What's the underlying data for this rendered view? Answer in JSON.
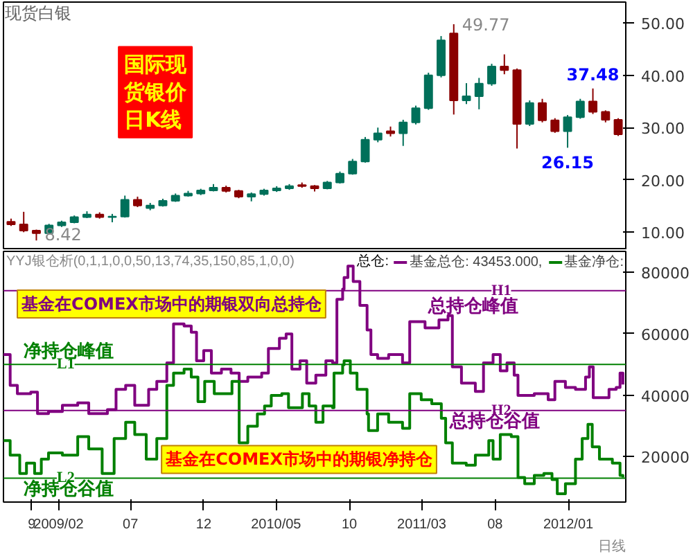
{
  "chart_data": [
    {
      "type": "candlestick",
      "title": "现货白银",
      "ylim": [
        6.6,
        54
      ],
      "yticks": [
        {
          "value": 10,
          "label": "10.00"
        },
        {
          "value": 20,
          "label": "20.00"
        },
        {
          "value": 30,
          "label": "30.00"
        },
        {
          "value": 40,
          "label": "40.00"
        },
        {
          "value": 50,
          "label": "50.00"
        }
      ],
      "tick_labels": "y",
      "categories": [
        null,
        null,
        null,
        null,
        null,
        null,
        null,
        null,
        null,
        null,
        null,
        null,
        null,
        null,
        null,
        null,
        null,
        null,
        null,
        null,
        null,
        null,
        null,
        null,
        null,
        null,
        null,
        null,
        null,
        null,
        null,
        null,
        null,
        null,
        null,
        null,
        null,
        null,
        null,
        null,
        null,
        null,
        null,
        null,
        null,
        null,
        null,
        null,
        null
      ],
      "ohlc": [
        [
          12.0,
          12.6,
          11.2,
          11.5
        ],
        [
          11.5,
          13.9,
          10.0,
          10.3
        ],
        [
          10.3,
          10.5,
          8.42,
          9.8
        ],
        [
          9.8,
          11.6,
          9.6,
          11.3
        ],
        [
          11.3,
          12.2,
          11.0,
          11.9
        ],
        [
          11.9,
          13.2,
          11.7,
          12.9
        ],
        [
          12.9,
          14.0,
          12.7,
          13.4
        ],
        [
          13.4,
          13.8,
          12.6,
          12.9
        ],
        [
          12.9,
          13.5,
          11.9,
          13.0
        ],
        [
          13.0,
          17.0,
          12.8,
          16.2
        ],
        [
          16.2,
          16.8,
          14.8,
          15.1
        ],
        [
          14.6,
          15.6,
          14.2,
          15.1
        ],
        [
          15.1,
          16.4,
          14.9,
          16.0
        ],
        [
          16.0,
          17.4,
          15.8,
          17.0
        ],
        [
          17.0,
          17.9,
          16.8,
          17.4
        ],
        [
          17.4,
          18.3,
          17.1,
          18.0
        ],
        [
          18.0,
          19.2,
          17.8,
          18.5
        ],
        [
          18.5,
          18.9,
          17.6,
          17.9
        ],
        [
          17.9,
          18.1,
          16.5,
          16.8
        ],
        [
          16.8,
          17.6,
          15.9,
          17.3
        ],
        [
          17.3,
          18.3,
          17.0,
          18.0
        ],
        [
          18.0,
          18.8,
          17.7,
          18.4
        ],
        [
          18.4,
          19.2,
          18.1,
          18.8
        ],
        [
          19.0,
          19.5,
          18.5,
          18.8
        ],
        [
          18.8,
          19.0,
          17.8,
          18.4
        ],
        [
          18.4,
          19.8,
          18.2,
          19.5
        ],
        [
          19.5,
          21.6,
          19.3,
          21.2
        ],
        [
          21.2,
          24.0,
          21.0,
          23.5
        ],
        [
          23.5,
          28.2,
          23.3,
          27.7
        ],
        [
          27.7,
          30.0,
          27.2,
          28.9
        ],
        [
          29.3,
          30.2,
          28.3,
          28.9
        ],
        [
          28.9,
          31.5,
          26.5,
          31.0
        ],
        [
          31.0,
          34.2,
          30.6,
          33.7
        ],
        [
          33.7,
          40.5,
          33.4,
          40.0
        ],
        [
          40.0,
          47.5,
          39.6,
          46.7
        ],
        [
          48.0,
          49.77,
          32.5,
          35.2
        ],
        [
          35.2,
          38.5,
          34.5,
          36.0
        ],
        [
          36.0,
          39.5,
          33.5,
          38.4
        ],
        [
          38.4,
          42.2,
          38.0,
          41.7
        ],
        [
          41.7,
          44.0,
          40.2,
          41.0
        ],
        [
          41.0,
          41.3,
          26.0,
          30.7
        ],
        [
          30.7,
          35.2,
          30.3,
          34.7
        ],
        [
          34.7,
          35.5,
          31.0,
          31.4
        ],
        [
          31.4,
          31.8,
          29.0,
          29.3
        ],
        [
          29.3,
          32.4,
          26.15,
          32.0
        ],
        [
          32.0,
          35.5,
          31.7,
          35.0
        ],
        [
          35.0,
          37.48,
          32.6,
          33.0
        ],
        [
          33.0,
          33.3,
          31.0,
          31.5
        ],
        [
          31.5,
          31.8,
          28.4,
          28.7
        ]
      ],
      "annotations": [
        "49.77",
        "8.42",
        {
          "text": "26.15",
          "y": 26.15
        },
        {
          "text": "37.48",
          "y": 37.48
        },
        "国际现货银价日K线"
      ]
    },
    {
      "type": "step",
      "title": "YYJ银仓析(0,1,1,0,0,50,13,74,35,150,85,1,0,0)",
      "subtitle": "总仓:",
      "legend": "top",
      "xlim": [
        "2008-10-09",
        "2012-04-30"
      ],
      "ylim": [
        5200,
        86800
      ],
      "yticks": [
        20000,
        40000,
        60000,
        80000
      ],
      "xticks": [
        {
          "value": "2008-12-07",
          "label": "9"
        },
        {
          "value": "2009-02-01",
          "label": "2009/02"
        },
        {
          "value": "2009-07-01",
          "label": "07"
        },
        {
          "value": "2009-12-01",
          "label": "12"
        },
        {
          "value": "2010-05-01",
          "label": "2010/05"
        },
        {
          "value": "2010-10-01",
          "label": "10"
        },
        {
          "value": "2011-03-01",
          "label": "2011/03"
        },
        {
          "value": "2011-08-01",
          "label": "08"
        },
        {
          "value": "2012-01-01",
          "label": "2012/01"
        }
      ],
      "series": [
        {
          "name": "基金总仓:",
          "color": "#800080",
          "x": [
            "2008-10-09",
            "2008-10-23",
            "2008-11-07",
            "2008-12-05",
            "2008-12-19",
            "2009-01-11",
            "2009-02-09",
            "2009-03-13",
            "2009-04-05",
            "2009-05-14",
            "2009-06-01",
            "2009-06-21",
            "2009-07-10",
            "2009-08-08",
            "2009-08-25",
            "2009-09-15",
            "2009-09-29",
            "2009-10-21",
            "2009-11-05",
            "2009-11-16",
            "2009-12-01",
            "2009-12-17",
            "2010-01-07",
            "2010-01-27",
            "2010-02-13",
            "2010-03-03",
            "2010-04-01",
            "2010-04-15",
            "2010-05-08",
            "2010-05-22",
            "2010-06-03",
            "2010-06-20",
            "2010-07-04",
            "2010-07-23",
            "2010-08-13",
            "2010-08-27",
            "2010-09-05",
            "2010-09-17",
            "2010-09-20",
            "2010-09-28",
            "2010-10-09",
            "2010-10-23",
            "2010-11-07",
            "2010-11-15",
            "2010-11-29",
            "2010-12-22",
            "2011-01-20",
            "2011-02-04",
            "2011-03-08",
            "2011-04-06",
            "2011-04-25",
            "2011-05-04",
            "2011-05-23",
            "2011-06-21",
            "2011-07-08",
            "2011-07-28",
            "2011-08-12",
            "2011-08-26",
            "2011-09-10",
            "2011-09-18",
            "2011-10-22",
            "2011-11-20",
            "2011-12-04",
            "2011-12-26",
            "2012-01-16",
            "2012-02-06",
            "2012-02-14",
            "2012-02-22",
            "2012-03-12",
            "2012-03-26",
            "2012-04-10",
            "2012-04-18",
            "2012-04-24"
          ],
          "values": [
            53200,
            43200,
            40500,
            41000,
            34000,
            34700,
            36700,
            37500,
            34000,
            35300,
            41900,
            43200,
            36700,
            41900,
            44500,
            50500,
            63200,
            62500,
            60500,
            51200,
            54500,
            47200,
            48500,
            47200,
            44500,
            45900,
            47200,
            55200,
            58500,
            59900,
            48500,
            51200,
            43900,
            46500,
            51200,
            50500,
            71200,
            74500,
            78300,
            82000,
            77000,
            69200,
            61200,
            53200,
            52000,
            53200,
            50500,
            63900,
            61900,
            64500,
            65900,
            49200,
            43900,
            41200,
            50500,
            53200,
            47900,
            50500,
            46500,
            39900,
            40500,
            38500,
            44500,
            42500,
            41900,
            45900,
            49200,
            39200,
            39200,
            41900,
            42500,
            47200,
            43453
          ]
        },
        {
          "name": "基金净仓:",
          "color": "#008000",
          "x": [
            "2008-10-09",
            "2008-10-23",
            "2008-11-12",
            "2008-11-26",
            "2008-12-13",
            "2008-12-27",
            "2009-01-11",
            "2009-02-09",
            "2009-03-13",
            "2009-04-05",
            "2009-05-03",
            "2009-05-28",
            "2009-06-21",
            "2009-07-10",
            "2009-08-03",
            "2009-08-25",
            "2009-09-15",
            "2009-09-29",
            "2009-10-21",
            "2009-11-05",
            "2009-11-19",
            "2009-12-03",
            "2009-12-23",
            "2010-01-15",
            "2010-01-29",
            "2010-02-13",
            "2010-03-03",
            "2010-03-23",
            "2010-04-07",
            "2010-04-21",
            "2010-05-13",
            "2010-05-27",
            "2010-06-25",
            "2010-07-09",
            "2010-07-23",
            "2010-08-07",
            "2010-08-27",
            "2010-08-30",
            "2010-09-17",
            "2010-09-20",
            "2010-10-03",
            "2010-10-17",
            "2010-11-07",
            "2010-11-10",
            "2010-11-29",
            "2010-12-22",
            "2011-01-20",
            "2011-02-04",
            "2011-02-28",
            "2011-03-22",
            "2011-04-11",
            "2011-04-20",
            "2011-05-04",
            "2011-06-02",
            "2011-06-21",
            "2011-07-19",
            "2011-07-28",
            "2011-08-12",
            "2011-09-04",
            "2011-09-18",
            "2011-10-02",
            "2011-10-22",
            "2011-11-11",
            "2011-11-28",
            "2011-12-09",
            "2011-12-26",
            "2012-01-16",
            "2012-01-30",
            "2012-02-11",
            "2012-02-20",
            "2012-03-06",
            "2012-04-02",
            "2012-04-18",
            "2012-04-24"
          ],
          "values": [
            25200,
            20500,
            14500,
            17900,
            14500,
            19200,
            21200,
            20500,
            26500,
            22500,
            14500,
            25900,
            31200,
            27200,
            19200,
            25900,
            43200,
            47200,
            48500,
            45900,
            37900,
            44500,
            40500,
            40500,
            44500,
            24500,
            29900,
            33900,
            36500,
            39900,
            40500,
            35900,
            40500,
            36500,
            31200,
            36500,
            35900,
            47200,
            49900,
            51200,
            47200,
            41900,
            33900,
            28500,
            33900,
            31200,
            29200,
            40500,
            38500,
            37200,
            32500,
            24500,
            17900,
            17200,
            20500,
            25200,
            19200,
            27200,
            26500,
            13200,
            11200,
            13900,
            14500,
            12500,
            7900,
            11200,
            19200,
            25900,
            30500,
            23200,
            19200,
            17900,
            13900,
            13200
          ]
        }
      ],
      "ref_lines": [
        {
          "axis": "y",
          "value": 50000,
          "label": "L1",
          "color": "#008000"
        },
        {
          "axis": "y",
          "value": 13000,
          "label": "L2",
          "color": "#008000"
        },
        {
          "axis": "y",
          "value": 74000,
          "label": "H1",
          "color": "#800080"
        },
        {
          "axis": "y",
          "value": 35000,
          "label": "H2",
          "color": "#800080"
        }
      ],
      "annotations": [
        "基金在COMEX市场中的期银双向总持仓",
        "基金在COMEX市场中的期银净持仓",
        "43453.000,",
        "日线",
        "净持仓峰值",
        "净持仓谷值",
        "总持仓峰值",
        "总持仓谷值"
      ]
    }
  ]
}
